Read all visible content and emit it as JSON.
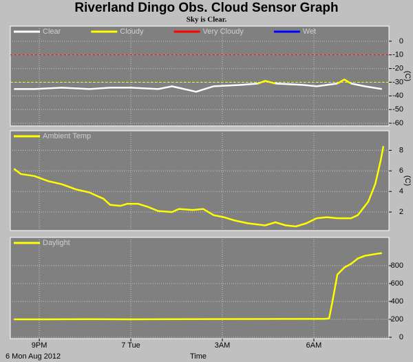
{
  "header": {
    "title": "Riverland Dingo Obs. Cloud Sensor Graph",
    "subtitle": "Sky is Clear."
  },
  "chart_data": [
    {
      "type": "line",
      "y_label": "(C)",
      "xlim": [
        20.05,
        32.46
      ],
      "ylim": [
        -62,
        11
      ],
      "yticks": [
        0,
        -10,
        -20,
        -30,
        -40,
        -50,
        -60
      ],
      "grid": true,
      "thresholds": [
        {
          "value": -10,
          "color": "#ff0000"
        },
        {
          "value": -30,
          "color": "#ffff00"
        }
      ],
      "x": [
        20.17,
        20.84,
        21.74,
        22.65,
        23.32,
        24.0,
        24.9,
        25.35,
        26.14,
        26.71,
        27.61,
        28.17,
        28.4,
        28.74,
        29.64,
        30.09,
        30.77,
        31.0,
        31.22,
        31.67,
        32.23
      ],
      "series": [
        {
          "name": "Clear",
          "color": "#ffffff",
          "values": [
            -35,
            -35,
            -34,
            -35,
            -34,
            -34,
            -35,
            -33,
            -37,
            -33,
            -32,
            -31,
            null,
            -31,
            -32,
            -33,
            -31,
            null,
            -31,
            -33,
            -35
          ]
        },
        {
          "name": "Cloudy",
          "color": "#ffff00",
          "values": [
            null,
            null,
            null,
            null,
            null,
            null,
            null,
            null,
            null,
            null,
            null,
            -31,
            -29,
            -31,
            null,
            null,
            -31,
            -28,
            -31,
            null,
            null
          ]
        },
        {
          "name": "Very Cloudy",
          "color": "#ff0000",
          "values": [
            null,
            null,
            null,
            null,
            null,
            null,
            null,
            null,
            null,
            null,
            null,
            null,
            null,
            null,
            null,
            null,
            null,
            null,
            null,
            null,
            null
          ]
        },
        {
          "name": "Wet",
          "color": "#0000ff",
          "values": [
            null,
            null,
            null,
            null,
            null,
            null,
            null,
            null,
            null,
            null,
            null,
            null,
            null,
            null,
            null,
            null,
            null,
            null,
            null,
            null,
            null
          ]
        }
      ]
    },
    {
      "type": "line",
      "y_label": "(C)",
      "xlim": [
        20.05,
        32.46
      ],
      "ylim": [
        0.2,
        9.9
      ],
      "yticks": [
        2,
        4,
        6,
        8
      ],
      "grid": true,
      "x": [
        20.17,
        20.39,
        20.84,
        21.29,
        21.74,
        22.2,
        22.65,
        22.87,
        23.1,
        23.32,
        23.66,
        23.89,
        24.23,
        24.56,
        24.9,
        25.35,
        25.58,
        26.03,
        26.37,
        26.71,
        27.05,
        27.38,
        27.84,
        28.4,
        28.74,
        29.08,
        29.41,
        29.75,
        30.09,
        30.43,
        30.77,
        31.22,
        31.44,
        31.78,
        32.01,
        32.19,
        32.28
      ],
      "series": [
        {
          "name": "Ambient Temp",
          "color": "#ffff00",
          "values": [
            6.2,
            5.7,
            5.5,
            5.0,
            4.7,
            4.2,
            3.9,
            3.6,
            3.3,
            2.7,
            2.6,
            2.8,
            2.8,
            2.5,
            2.1,
            2.0,
            2.3,
            2.2,
            2.3,
            1.7,
            1.5,
            1.2,
            0.9,
            0.7,
            1.0,
            0.7,
            0.6,
            0.9,
            1.4,
            1.5,
            1.4,
            1.4,
            1.7,
            3.0,
            4.7,
            7.0,
            8.4
          ]
        }
      ]
    },
    {
      "type": "line",
      "xlim": [
        20.05,
        32.46
      ],
      "ylim": [
        -15,
        1115
      ],
      "yticks": [
        0,
        200,
        400,
        600,
        800
      ],
      "grid": true,
      "xticks": [
        {
          "value": 21,
          "label": "9PM"
        },
        {
          "value": 24,
          "label": "7 Tue"
        },
        {
          "value": 27,
          "label": "3AM"
        },
        {
          "value": 30,
          "label": "6AM"
        }
      ],
      "x_label": "Time",
      "date_label": "6 Mon Aug 2012",
      "x": [
        20.17,
        21.29,
        22.65,
        24.0,
        25.35,
        26.71,
        28.17,
        29.64,
        30.32,
        30.5,
        30.61,
        30.77,
        31.0,
        31.22,
        31.44,
        31.67,
        32.01,
        32.23
      ],
      "series": [
        {
          "name": "Daylight",
          "color": "#ffff00",
          "values": [
            200,
            200,
            202,
            200,
            202,
            203,
            204,
            205,
            205,
            210,
            400,
            700,
            780,
            820,
            880,
            910,
            930,
            940
          ]
        }
      ]
    }
  ]
}
